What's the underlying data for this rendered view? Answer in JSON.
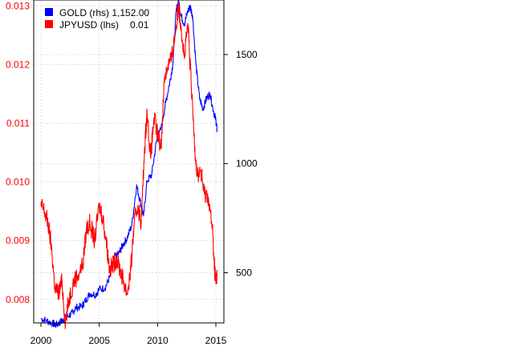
{
  "chart_data": {
    "type": "line",
    "title": "",
    "xlabel": "",
    "ylabel": "",
    "x_ticks": [
      "2000",
      "2005",
      "2010",
      "2015"
    ],
    "xlim": [
      2000,
      2015
    ],
    "y_left": {
      "ticks": [
        "0.008",
        "0.009",
        "0.010",
        "0.011",
        "0.012",
        "0.013"
      ],
      "ylim": [
        0.0076,
        0.0131
      ],
      "color": "#ff0000"
    },
    "y_right": {
      "ticks": [
        "500",
        "1000",
        "1500"
      ],
      "ylim": [
        270,
        1750
      ],
      "color": "#000000"
    },
    "grid": true,
    "legend_position": "top-left",
    "series": [
      {
        "name": "GOLD (rhs)",
        "last_value": "1,152.00",
        "axis": "right",
        "color": "#0000ff",
        "points": [
          [
            2000.0,
            290
          ],
          [
            2000.5,
            280
          ],
          [
            2001.0,
            268
          ],
          [
            2001.3,
            260
          ],
          [
            2001.7,
            275
          ],
          [
            2002.0,
            285
          ],
          [
            2002.3,
            300
          ],
          [
            2002.7,
            315
          ],
          [
            2003.0,
            340
          ],
          [
            2003.5,
            345
          ],
          [
            2003.8,
            370
          ],
          [
            2004.2,
            405
          ],
          [
            2004.7,
            400
          ],
          [
            2005.0,
            425
          ],
          [
            2005.5,
            430
          ],
          [
            2005.9,
            480
          ],
          [
            2006.3,
            570
          ],
          [
            2006.7,
            590
          ],
          [
            2007.0,
            625
          ],
          [
            2007.4,
            660
          ],
          [
            2007.8,
            720
          ],
          [
            2008.2,
            900
          ],
          [
            2008.5,
            830
          ],
          [
            2008.8,
            760
          ],
          [
            2009.1,
            920
          ],
          [
            2009.5,
            950
          ],
          [
            2009.9,
            1100
          ],
          [
            2010.3,
            1160
          ],
          [
            2010.7,
            1280
          ],
          [
            2011.0,
            1360
          ],
          [
            2011.3,
            1450
          ],
          [
            2011.6,
            1700
          ],
          [
            2011.8,
            1750
          ],
          [
            2012.0,
            1680
          ],
          [
            2012.3,
            1640
          ],
          [
            2012.6,
            1700
          ],
          [
            2012.8,
            1720
          ],
          [
            2013.0,
            1680
          ],
          [
            2013.3,
            1450
          ],
          [
            2013.6,
            1300
          ],
          [
            2013.9,
            1250
          ],
          [
            2014.2,
            1300
          ],
          [
            2014.5,
            1320
          ],
          [
            2014.8,
            1240
          ],
          [
            2015.0,
            1200
          ],
          [
            2015.1,
            1152
          ]
        ]
      },
      {
        "name": "JPYUSD (lhs)",
        "last_value": "0.01",
        "axis": "left",
        "color": "#ff0000",
        "points": [
          [
            2000.0,
            0.0096
          ],
          [
            2000.3,
            0.0095
          ],
          [
            2000.6,
            0.0093
          ],
          [
            2000.9,
            0.0089
          ],
          [
            2001.2,
            0.0082
          ],
          [
            2001.5,
            0.0081
          ],
          [
            2001.8,
            0.0083
          ],
          [
            2002.1,
            0.0076
          ],
          [
            2002.4,
            0.008
          ],
          [
            2002.8,
            0.0083
          ],
          [
            2003.1,
            0.0084
          ],
          [
            2003.6,
            0.0086
          ],
          [
            2003.9,
            0.0092
          ],
          [
            2004.2,
            0.0093
          ],
          [
            2004.6,
            0.009
          ],
          [
            2005.0,
            0.0096
          ],
          [
            2005.3,
            0.0094
          ],
          [
            2005.6,
            0.009
          ],
          [
            2005.9,
            0.0085
          ],
          [
            2006.2,
            0.0086
          ],
          [
            2006.5,
            0.0087
          ],
          [
            2006.8,
            0.0085
          ],
          [
            2007.1,
            0.0083
          ],
          [
            2007.4,
            0.0081
          ],
          [
            2007.7,
            0.0085
          ],
          [
            2008.0,
            0.0093
          ],
          [
            2008.3,
            0.0096
          ],
          [
            2008.6,
            0.0093
          ],
          [
            2008.9,
            0.0106
          ],
          [
            2009.1,
            0.0112
          ],
          [
            2009.4,
            0.0104
          ],
          [
            2009.7,
            0.0111
          ],
          [
            2010.0,
            0.0108
          ],
          [
            2010.3,
            0.0106
          ],
          [
            2010.6,
            0.0118
          ],
          [
            2010.9,
            0.012
          ],
          [
            2011.2,
            0.0121
          ],
          [
            2011.5,
            0.0125
          ],
          [
            2011.8,
            0.013
          ],
          [
            2012.0,
            0.0127
          ],
          [
            2012.3,
            0.0121
          ],
          [
            2012.6,
            0.0127
          ],
          [
            2012.9,
            0.0116
          ],
          [
            2013.2,
            0.0106
          ],
          [
            2013.4,
            0.0101
          ],
          [
            2013.7,
            0.0102
          ],
          [
            2014.0,
            0.0098
          ],
          [
            2014.3,
            0.0098
          ],
          [
            2014.7,
            0.0092
          ],
          [
            2014.9,
            0.0085
          ],
          [
            2015.0,
            0.0083
          ],
          [
            2015.1,
            0.0084
          ]
        ]
      }
    ]
  }
}
